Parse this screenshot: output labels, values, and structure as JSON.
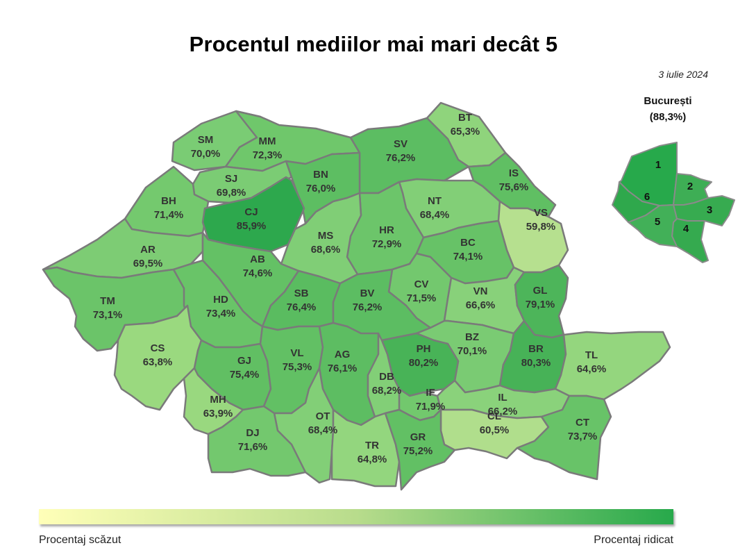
{
  "title": "Procentul mediilor mai mari decât 5",
  "date": "3 iulie 2024",
  "bucharest": {
    "name": "București",
    "value_label": "(88,3%)",
    "value": 88.3,
    "sectors": [
      {
        "id": "1",
        "label": "1",
        "color": "#27a94b"
      },
      {
        "id": "2",
        "label": "2",
        "color": "#3eae55"
      },
      {
        "id": "3",
        "label": "3",
        "color": "#37ab50"
      },
      {
        "id": "4",
        "label": "4",
        "color": "#35aa4f"
      },
      {
        "id": "5",
        "label": "5",
        "color": "#42b058"
      },
      {
        "id": "6",
        "label": "6",
        "color": "#2fa84c"
      }
    ]
  },
  "legend": {
    "low_label": "Procentaj scăzut",
    "high_label": "Procentaj ridicat",
    "low_color": "#ffffb8",
    "high_color": "#27a94b"
  },
  "counties": [
    {
      "code": "SM",
      "value": 70.0,
      "label": "70,0%",
      "color": "#7acc74"
    },
    {
      "code": "MM",
      "value": 72.3,
      "label": "72,3%",
      "color": "#6fc76b"
    },
    {
      "code": "BT",
      "value": 65.3,
      "label": "65,3%",
      "color": "#8fd47c"
    },
    {
      "code": "SV",
      "value": 76.2,
      "label": "76,2%",
      "color": "#5cbd62"
    },
    {
      "code": "SJ",
      "value": 69.8,
      "label": "69,8%",
      "color": "#7bcc74"
    },
    {
      "code": "BN",
      "value": 76.0,
      "label": "76,0%",
      "color": "#5dbe62"
    },
    {
      "code": "IS",
      "value": 75.6,
      "label": "75,6%",
      "color": "#60bf63"
    },
    {
      "code": "BH",
      "value": 71.4,
      "label": "71,4%",
      "color": "#74c96e"
    },
    {
      "code": "CJ",
      "value": 85.9,
      "label": "85,9%",
      "color": "#2da84d"
    },
    {
      "code": "NT",
      "value": 68.4,
      "label": "68,4%",
      "color": "#82cf77"
    },
    {
      "code": "VS",
      "value": 59.8,
      "label": "59,8%",
      "color": "#b6e08f"
    },
    {
      "code": "HR",
      "value": 72.9,
      "label": "72,9%",
      "color": "#6cc56a"
    },
    {
      "code": "MS",
      "value": 68.6,
      "label": "68,6%",
      "color": "#80ce76"
    },
    {
      "code": "AR",
      "value": 69.5,
      "label": "69,5%",
      "color": "#7dcc74"
    },
    {
      "code": "BC",
      "value": 74.1,
      "label": "74,1%",
      "color": "#67c267"
    },
    {
      "code": "AB",
      "value": 74.6,
      "label": "74,6%",
      "color": "#64c165"
    },
    {
      "code": "CV",
      "value": 71.5,
      "label": "71,5%",
      "color": "#73c86e"
    },
    {
      "code": "VN",
      "value": 66.6,
      "label": "66,6%",
      "color": "#88d17a"
    },
    {
      "code": "TM",
      "value": 73.1,
      "label": "73,1%",
      "color": "#6bc469"
    },
    {
      "code": "HD",
      "value": 73.4,
      "label": "73,4%",
      "color": "#69c468"
    },
    {
      "code": "SB",
      "value": 76.4,
      "label": "76,4%",
      "color": "#5abc60"
    },
    {
      "code": "BV",
      "value": 76.2,
      "label": "76,2%",
      "color": "#5cbd62"
    },
    {
      "code": "GL",
      "value": 79.1,
      "label": "79,1%",
      "color": "#4db55a"
    },
    {
      "code": "CS",
      "value": 63.8,
      "label": "63,8%",
      "color": "#9ad97f"
    },
    {
      "code": "BZ",
      "value": 70.1,
      "label": "70,1%",
      "color": "#7acb73"
    },
    {
      "code": "BR",
      "value": 80.3,
      "label": "80,3%",
      "color": "#47b257"
    },
    {
      "code": "GJ",
      "value": 75.4,
      "label": "75,4%",
      "color": "#61bf63"
    },
    {
      "code": "VL",
      "value": 75.3,
      "label": "75,3%",
      "color": "#62c064"
    },
    {
      "code": "AG",
      "value": 76.1,
      "label": "76,1%",
      "color": "#5dbd62"
    },
    {
      "code": "PH",
      "value": 80.2,
      "label": "80,2%",
      "color": "#48b357"
    },
    {
      "code": "TL",
      "value": 64.6,
      "label": "64,6%",
      "color": "#94d67e"
    },
    {
      "code": "DB",
      "value": 68.2,
      "label": "68,2%",
      "color": "#82cf77"
    },
    {
      "code": "MH",
      "value": 63.9,
      "label": "63,9%",
      "color": "#99d87f"
    },
    {
      "code": "IF",
      "value": 71.9,
      "label": "71,9%",
      "color": "#72c86d"
    },
    {
      "code": "IL",
      "value": 66.2,
      "label": "66,2%",
      "color": "#8ad27b"
    },
    {
      "code": "OT",
      "value": 68.4,
      "label": "68,4%",
      "color": "#82cf77"
    },
    {
      "code": "DJ",
      "value": 71.6,
      "label": "71,6%",
      "color": "#73c86e"
    },
    {
      "code": "CL",
      "value": 60.5,
      "label": "60,5%",
      "color": "#b0de8c"
    },
    {
      "code": "CT",
      "value": 73.7,
      "label": "73,7%",
      "color": "#68c368"
    },
    {
      "code": "TR",
      "value": 64.8,
      "label": "64,8%",
      "color": "#93d67e"
    },
    {
      "code": "GR",
      "value": 75.2,
      "label": "75,2%",
      "color": "#62c064"
    }
  ]
}
